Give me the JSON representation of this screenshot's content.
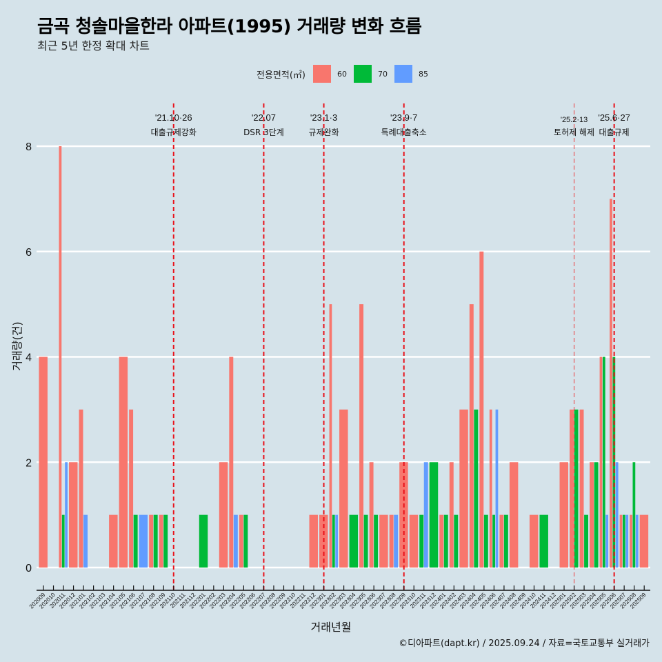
{
  "title": "금곡 청솔마을한라 아파트(1995) 거래량 변화 흐름",
  "subtitle": "최근 5년 한정 확대 차트",
  "caption": "©디아파트(dapt.kr) / 2025.09.24 / 자료=국토교통부 실거래가",
  "chart_data": {
    "type": "bar",
    "title": "금곡 청솔마을한라 아파트(1995) 거래량 변화 흐름",
    "subtitle": "최근 5년 한정 확대 차트",
    "xlabel": "거래년월",
    "ylabel": "거래량(건)",
    "ylim": [
      0,
      8
    ],
    "yticks": [
      0,
      2,
      4,
      6,
      8
    ],
    "grid": "horizontal",
    "legend": {
      "title": "전용면적(㎡)",
      "position": "top",
      "entries": [
        "60",
        "70",
        "85"
      ]
    },
    "colors": {
      "60": "#F8766D",
      "70": "#00BA38",
      "85": "#619CFF"
    },
    "categories": [
      "202009",
      "202010",
      "202011",
      "202012",
      "202101",
      "202102",
      "202103",
      "202104",
      "202105",
      "202106",
      "202107",
      "202108",
      "202109",
      "202110",
      "202111",
      "202112",
      "202201",
      "202202",
      "202203",
      "202204",
      "202205",
      "202206",
      "202207",
      "202208",
      "202209",
      "202210",
      "202211",
      "202212",
      "202301",
      "202302",
      "202303",
      "202304",
      "202305",
      "202306",
      "202307",
      "202308",
      "202309",
      "202310",
      "202311",
      "202312",
      "202401",
      "202402",
      "202403",
      "202404",
      "202405",
      "202406",
      "202407",
      "202408",
      "202409",
      "202410",
      "202411",
      "202412",
      "202501",
      "202502",
      "202503",
      "202504",
      "202505",
      "202506",
      "202507",
      "202508",
      "202509"
    ],
    "series": [
      {
        "name": "60",
        "values": [
          4,
          0,
          8,
          2,
          3,
          0,
          0,
          1,
          4,
          3,
          0,
          1,
          1,
          0,
          0,
          0,
          0,
          0,
          2,
          4,
          1,
          0,
          0,
          0,
          0,
          0,
          0,
          1,
          1,
          5,
          3,
          0,
          5,
          2,
          1,
          1,
          2,
          1,
          0,
          0,
          1,
          2,
          3,
          5,
          6,
          3,
          1,
          2,
          0,
          1,
          0,
          0,
          2,
          3,
          3,
          2,
          4,
          7,
          1,
          1,
          1
        ]
      },
      {
        "name": "70",
        "values": [
          0,
          0,
          1,
          0,
          0,
          0,
          0,
          0,
          0,
          1,
          0,
          1,
          1,
          0,
          0,
          0,
          1,
          0,
          0,
          0,
          1,
          0,
          0,
          0,
          0,
          0,
          0,
          0,
          0,
          1,
          0,
          1,
          1,
          1,
          0,
          0,
          0,
          0,
          1,
          2,
          1,
          1,
          0,
          3,
          1,
          1,
          1,
          0,
          0,
          0,
          1,
          0,
          0,
          3,
          1,
          2,
          4,
          4,
          1,
          2,
          0
        ]
      },
      {
        "name": "85",
        "values": [
          0,
          0,
          2,
          0,
          1,
          0,
          0,
          0,
          0,
          0,
          1,
          0,
          0,
          0,
          0,
          0,
          0,
          0,
          0,
          1,
          0,
          0,
          0,
          0,
          0,
          0,
          0,
          0,
          0,
          1,
          0,
          0,
          0,
          0,
          0,
          1,
          0,
          0,
          2,
          0,
          0,
          0,
          0,
          0,
          0,
          3,
          0,
          0,
          0,
          0,
          0,
          0,
          0,
          0,
          0,
          0,
          1,
          2,
          1,
          1,
          0
        ]
      }
    ],
    "annotations": [
      {
        "x": "202110",
        "date": "'21.10·26",
        "label": "대출규제강화",
        "style": "dashed"
      },
      {
        "x": "202207",
        "date": "'22.07",
        "label": "DSR 3단계",
        "style": "dashed"
      },
      {
        "x": "202301",
        "date": "'23.1·3",
        "label": "규제완화",
        "style": "dashed"
      },
      {
        "x": "202309",
        "date": "'23.9·7",
        "label": "특례대출축소",
        "style": "dashed"
      },
      {
        "x": "202502",
        "date": "'25.2·13",
        "label": "토허제 해제",
        "style": "dashed-light"
      },
      {
        "x": "202506",
        "date": "'25.6·27",
        "label": "대출규제",
        "style": "dashed"
      }
    ]
  }
}
